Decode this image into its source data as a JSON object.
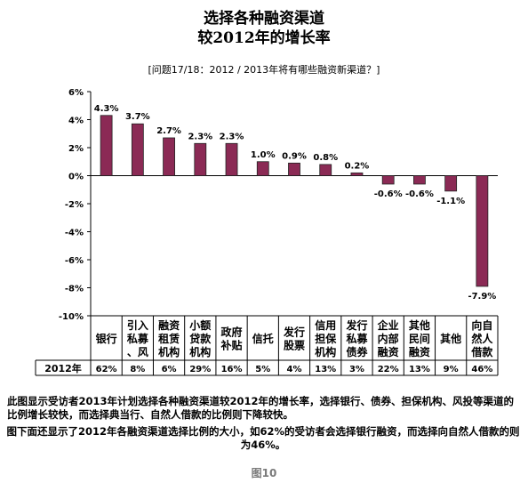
{
  "title_line1": "选择各种融资渠道",
  "title_line2": "较2012年的增长率",
  "question": "[问题17/18：2012 / 2013年将有哪些融资新渠道？]",
  "description_1": "此图显示受访者2013年计划选择各种融资渠道较2012年的增长率，选择银行、债券、担保机构、风投等渠道的比例增长较快，而选择典当行、自然人借款的比例则下降较快。",
  "description_2": "图下面还显示了2012年各融资渠道选择比例的大小，如62%的受访者会选择银行融资，而选择向自然人借款的则为46%。",
  "figure_label": "图10",
  "bar_color": "#8b2a55",
  "chart_data": {
    "type": "bar",
    "title": "选择各种融资渠道较2012年的增长率",
    "categories": [
      "银行",
      "引入私募、风",
      "融资租赁机构",
      "小额贷款机构",
      "政府补贴",
      "信托",
      "发行股票",
      "信用担保机构",
      "发行私募债券",
      "企业内部融资",
      "其他民间融资",
      "其他",
      "向自然人借款"
    ],
    "category_lines": [
      [
        "银行"
      ],
      [
        "引入",
        "私募",
        "、风"
      ],
      [
        "融资",
        "租赁",
        "机构"
      ],
      [
        "小额",
        "贷款",
        "机构"
      ],
      [
        "政府",
        "补贴"
      ],
      [
        "信托"
      ],
      [
        "发行",
        "股票"
      ],
      [
        "信用",
        "担保",
        "机构"
      ],
      [
        "发行",
        "私募",
        "债券"
      ],
      [
        "企业",
        "内部",
        "融资"
      ],
      [
        "其他",
        "民间",
        "融资"
      ],
      [
        "其他"
      ],
      [
        "向自",
        "然人",
        "借款"
      ]
    ],
    "values": [
      4.3,
      3.7,
      2.7,
      2.3,
      2.3,
      1.0,
      0.9,
      0.8,
      0.2,
      -0.6,
      -0.6,
      -1.1,
      -7.9
    ],
    "value_labels": [
      "4.3%",
      "3.7%",
      "2.7%",
      "2.3%",
      "2.3%",
      "1.0%",
      "0.9%",
      "0.8%",
      "0.2%",
      "-0.6%",
      "-0.6%",
      "-1.1%",
      "-7.9%"
    ],
    "ylim": [
      -10,
      6
    ],
    "yticks": [
      6,
      4,
      2,
      0,
      -2,
      -4,
      -6,
      -8,
      -10
    ],
    "ytick_labels": [
      "6%",
      "4%",
      "2%",
      "0%",
      "-2%",
      "-4%",
      "-6%",
      "-8%",
      "-10%"
    ],
    "table_header": "2012年",
    "table_values": [
      "62%",
      "8%",
      "6%",
      "29%",
      "16%",
      "5%",
      "4%",
      "13%",
      "3%",
      "22%",
      "13%",
      "9%",
      "46%"
    ]
  }
}
